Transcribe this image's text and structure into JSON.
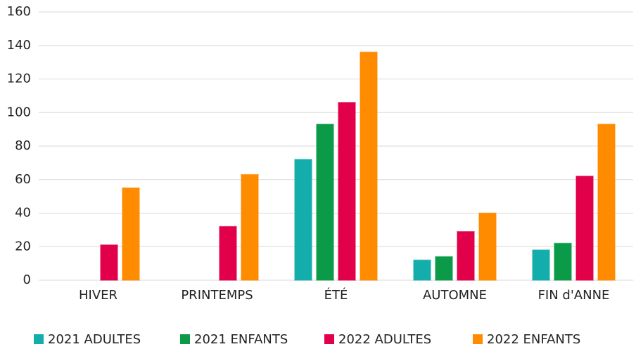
{
  "chart_data": {
    "type": "bar",
    "categories": [
      "HIVER",
      "PRINTEMPS",
      "ÉTÉ",
      "AUTOMNE",
      "FIN d'ANNE"
    ],
    "series": [
      {
        "name": "2021 ADULTES",
        "color": "#13adac",
        "values": [
          0,
          0,
          72,
          12,
          18
        ]
      },
      {
        "name": "2021 ENFANTS",
        "color": "#0b9a47",
        "values": [
          0,
          0,
          93,
          14,
          22
        ]
      },
      {
        "name": "2022 ADULTES",
        "color": "#e3004b",
        "values": [
          21,
          32,
          106,
          29,
          62
        ]
      },
      {
        "name": "2022 ENFANTS",
        "color": "#ff8b00",
        "values": [
          55,
          63,
          136,
          40,
          93
        ]
      }
    ],
    "ylim": [
      0,
      160
    ],
    "yticks": [
      0,
      20,
      40,
      60,
      80,
      100,
      120,
      140,
      160
    ],
    "grid": true,
    "legend": "bottom"
  }
}
